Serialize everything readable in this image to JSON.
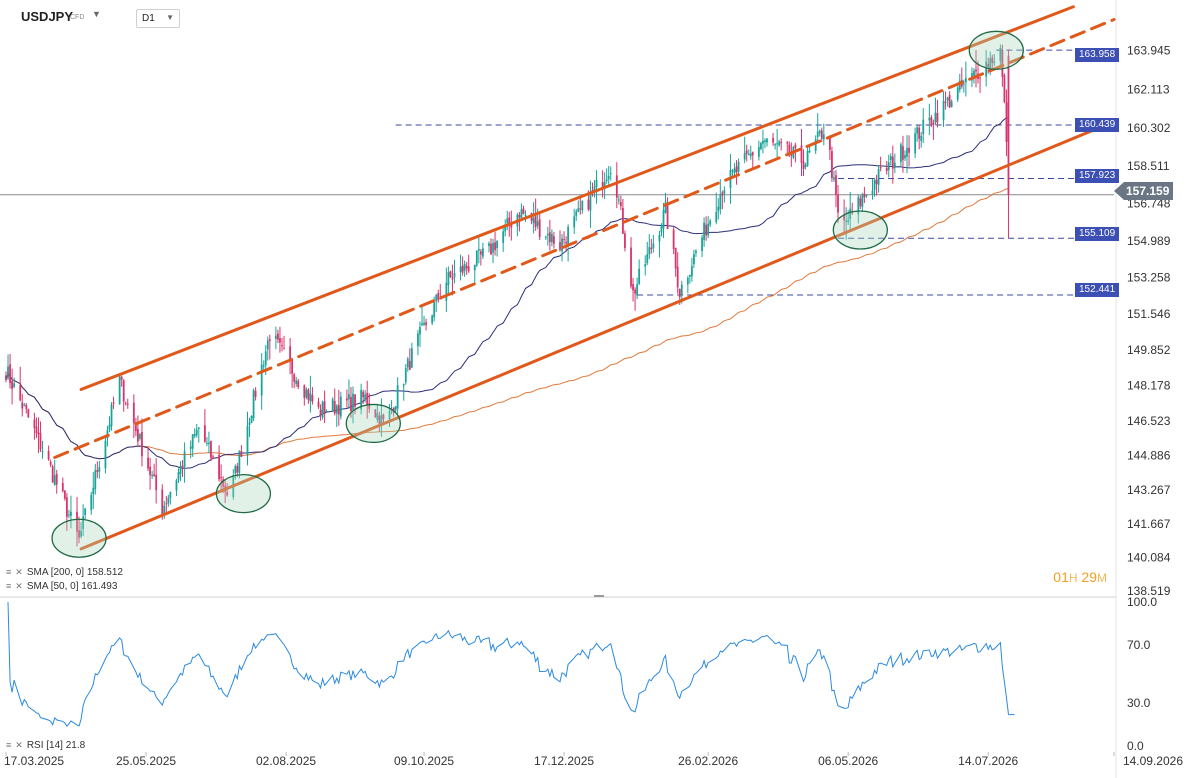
{
  "header": {
    "symbol": "USDJPY",
    "instrument_type": "CFD",
    "timeframe": "D1"
  },
  "countdown": {
    "hours": "01",
    "h_unit": "H",
    "minutes": "29",
    "m_unit": "M"
  },
  "legend": {
    "sma200": "SMA [200, 0] 158.512",
    "sma50": "SMA [50, 0] 161.493",
    "rsi": "RSI [14] 21.8"
  },
  "price_axis": [
    "163.945",
    "162.113",
    "160.302",
    "158.511",
    "156.748",
    "154.989",
    "153.258",
    "151.546",
    "149.852",
    "148.178",
    "146.523",
    "144.886",
    "143.267",
    "141.667",
    "140.084",
    "138.519"
  ],
  "rsi_axis": [
    "100.0",
    "70.0",
    "30.0",
    "0.0"
  ],
  "date_axis": [
    "17.03.2025",
    "25.05.2025",
    "02.08.2025",
    "09.10.2025",
    "17.12.2025",
    "26.02.2026",
    "06.05.2026",
    "14.07.2026",
    "14.09.2026"
  ],
  "current_price": "157.159",
  "level_tags": [
    "163.958",
    "160.439",
    "157.923",
    "155.109",
    "152.441"
  ],
  "colors": {
    "trend": "#e0581a",
    "sma50": "#2b2f7a",
    "sma200": "#e07a3a",
    "rsi": "#2a8ae0",
    "bull": "#1aa39a",
    "bear": "#d9336a",
    "tag": "#3c4fb4"
  },
  "chart_data": {
    "type": "candlestick",
    "x_range": [
      "17.03.2025",
      "14.09.2026"
    ],
    "y_range": [
      138.519,
      164.8
    ],
    "levels": [
      163.958,
      160.439,
      157.923,
      155.109,
      152.441
    ],
    "anchors": [
      [
        "17.03.2025",
        148.9
      ],
      [
        "05.04.2025",
        145.0
      ],
      [
        "22.04.2025",
        140.9
      ],
      [
        "12.05.2025",
        148.4
      ],
      [
        "02.06.2025",
        142.4
      ],
      [
        "20.06.2025",
        146.2
      ],
      [
        "05.07.2025",
        142.9
      ],
      [
        "25.07.2025",
        150.6
      ],
      [
        "18.08.2025",
        147.0
      ],
      [
        "10.09.2025",
        147.6
      ],
      [
        "20.09.2025",
        146.3
      ],
      [
        "05.10.2025",
        150.1
      ],
      [
        "20.10.2025",
        153.1
      ],
      [
        "10.11.2025",
        154.5
      ],
      [
        "25.11.2025",
        156.4
      ],
      [
        "15.12.2025",
        154.8
      ],
      [
        "10.01.2026",
        158.7
      ],
      [
        "20.01.2026",
        152.5
      ],
      [
        "05.02.2026",
        156.4
      ],
      [
        "12.02.2026",
        152.6
      ],
      [
        "05.03.2026",
        157.5
      ],
      [
        "25.03.2026",
        159.7
      ],
      [
        "15.04.2026",
        158.7
      ],
      [
        "25.04.2026",
        160.4
      ],
      [
        "02.05.2026",
        155.5
      ],
      [
        "20.05.2026",
        157.9
      ],
      [
        "15.06.2026",
        160.6
      ],
      [
        "05.07.2026",
        162.6
      ],
      [
        "20.07.2026",
        163.95
      ],
      [
        "25.07.2026",
        157.16
      ]
    ],
    "trendlines": [
      {
        "style": "solid",
        "from": [
          "23.04.2025",
          140.5
        ],
        "to": [
          "14.09.2026",
          160.6
        ]
      },
      {
        "style": "solid",
        "from": [
          "23.04.2025",
          148.0
        ],
        "to": [
          "25.08.2026",
          166.0
        ]
      },
      {
        "style": "dashed",
        "from": [
          "10.04.2025",
          144.8
        ],
        "to": [
          "14.09.2026",
          165.4
        ]
      }
    ],
    "circles": [
      [
        "22.04.2025",
        141.0
      ],
      [
        "12.07.2025",
        143.1
      ],
      [
        "14.09.2025",
        146.4
      ],
      [
        "12.05.2026",
        155.5
      ],
      [
        "18.07.2026",
        163.95
      ]
    ],
    "sma_labels": [
      "SMA [200, 0] 158.512",
      "SMA [50, 0] 161.493"
    ],
    "rsi": {
      "label": "RSI [14] 21.8",
      "range": [
        0,
        100
      ],
      "last": 21.8,
      "levels": [
        30.0,
        70.0
      ]
    },
    "current": 157.159
  }
}
